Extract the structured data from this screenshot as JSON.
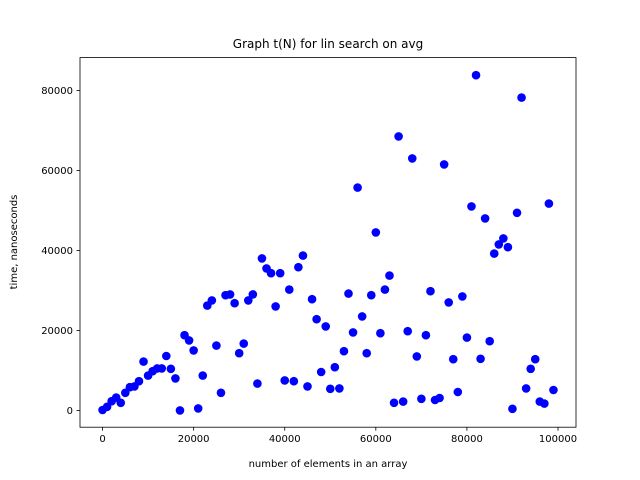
{
  "chart_data": {
    "type": "scatter",
    "title": "Graph t(N) for lin search on avg",
    "xlabel": "number of elements in an array",
    "ylabel": "time, nanoseconds",
    "xlim": [
      -4950,
      103950
    ],
    "ylim": [
      -4200,
      88200
    ],
    "xticks": [
      0,
      20000,
      40000,
      60000,
      80000,
      100000
    ],
    "yticks": [
      0,
      20000,
      40000,
      60000,
      80000
    ],
    "grid": false,
    "marker_color": "#0000ff",
    "points": [
      [
        0,
        100
      ],
      [
        1000,
        900
      ],
      [
        2000,
        2300
      ],
      [
        3000,
        3200
      ],
      [
        4000,
        1900
      ],
      [
        5000,
        4400
      ],
      [
        6000,
        5800
      ],
      [
        7000,
        6000
      ],
      [
        8000,
        7300
      ],
      [
        9000,
        12200
      ],
      [
        10000,
        8700
      ],
      [
        11000,
        9800
      ],
      [
        12000,
        10500
      ],
      [
        13000,
        10500
      ],
      [
        14000,
        13600
      ],
      [
        15000,
        10400
      ],
      [
        16000,
        8000
      ],
      [
        17000,
        0
      ],
      [
        18000,
        18800
      ],
      [
        19000,
        17500
      ],
      [
        20000,
        15000
      ],
      [
        21000,
        500
      ],
      [
        22000,
        8700
      ],
      [
        23000,
        26200
      ],
      [
        24000,
        27500
      ],
      [
        25000,
        16200
      ],
      [
        26000,
        4400
      ],
      [
        27000,
        28800
      ],
      [
        28000,
        29000
      ],
      [
        29000,
        26800
      ],
      [
        30000,
        14300
      ],
      [
        31000,
        16700
      ],
      [
        32000,
        27500
      ],
      [
        33000,
        29000
      ],
      [
        34000,
        6700
      ],
      [
        35000,
        38000
      ],
      [
        36000,
        35500
      ],
      [
        37000,
        34300
      ],
      [
        38000,
        26000
      ],
      [
        39000,
        34300
      ],
      [
        40000,
        7500
      ],
      [
        41000,
        30200
      ],
      [
        42000,
        7300
      ],
      [
        43000,
        35800
      ],
      [
        44000,
        38700
      ],
      [
        45000,
        6000
      ],
      [
        46000,
        27800
      ],
      [
        47000,
        22800
      ],
      [
        48000,
        9600
      ],
      [
        49000,
        21000
      ],
      [
        50000,
        5400
      ],
      [
        51000,
        10800
      ],
      [
        52000,
        5500
      ],
      [
        53000,
        14800
      ],
      [
        54000,
        29200
      ],
      [
        55000,
        19500
      ],
      [
        56000,
        55700
      ],
      [
        57000,
        23500
      ],
      [
        58000,
        14300
      ],
      [
        59000,
        28800
      ],
      [
        60000,
        44500
      ],
      [
        61000,
        19300
      ],
      [
        62000,
        30200
      ],
      [
        63000,
        33700
      ],
      [
        64000,
        1900
      ],
      [
        65000,
        68500
      ],
      [
        66000,
        2200
      ],
      [
        67000,
        19800
      ],
      [
        68000,
        63000
      ],
      [
        69000,
        13500
      ],
      [
        70000,
        2900
      ],
      [
        71000,
        18800
      ],
      [
        72000,
        29800
      ],
      [
        73000,
        2600
      ],
      [
        74000,
        3100
      ],
      [
        75000,
        61500
      ],
      [
        76000,
        27000
      ],
      [
        77000,
        12800
      ],
      [
        78000,
        4600
      ],
      [
        79000,
        28500
      ],
      [
        80000,
        18200
      ],
      [
        81000,
        51000
      ],
      [
        82000,
        83800
      ],
      [
        83000,
        12900
      ],
      [
        84000,
        48000
      ],
      [
        85000,
        17300
      ],
      [
        86000,
        39200
      ],
      [
        87000,
        41500
      ],
      [
        88000,
        43000
      ],
      [
        89000,
        40800
      ],
      [
        90000,
        400
      ],
      [
        91000,
        49400
      ],
      [
        92000,
        78200
      ],
      [
        93000,
        5500
      ],
      [
        94000,
        10400
      ],
      [
        95000,
        12800
      ],
      [
        96000,
        2200
      ],
      [
        97000,
        1700
      ],
      [
        98000,
        51700
      ],
      [
        99000,
        5100
      ]
    ]
  }
}
